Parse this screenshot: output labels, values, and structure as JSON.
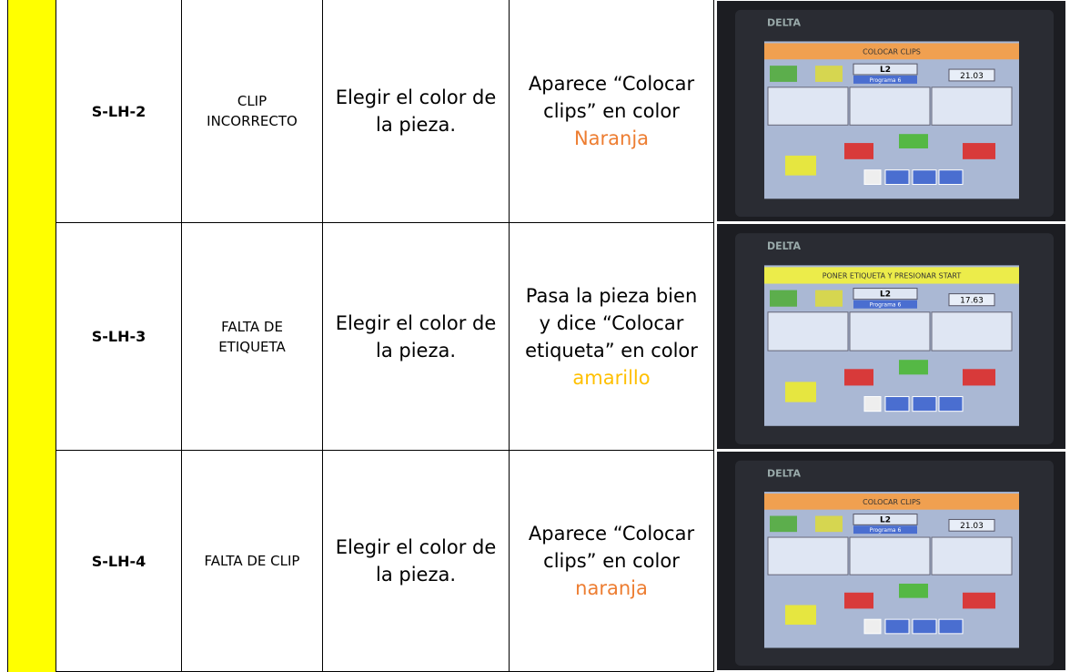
{
  "table": {
    "rows": [
      {
        "id": "S-LH-2",
        "defect": "CLIP INCORRECTO",
        "action": "Elegir el color de la pieza.",
        "result": "Aparece “Colocar clips” en color",
        "result_highlight": "Naranja",
        "screen": {
          "brand": "DELTA",
          "title": "COLOCAR CLIPS",
          "line": "L2",
          "program": "Programa 6",
          "counter": "21.03"
        }
      },
      {
        "id": "S-LH-3",
        "defect": "FALTA DE ETIQUETA",
        "action": "Elegir el color de la pieza.",
        "result": "Pasa la pieza bien y dice “Colocar etiqueta” en color",
        "result_highlight": "amarillo",
        "screen": {
          "brand": "DELTA",
          "title": "PONER ETIQUETA Y PRESIONAR START",
          "line": "L2",
          "program": "Programa 6",
          "counter": "17.63"
        }
      },
      {
        "id": "S-LH-4",
        "defect": "FALTA DE CLIP",
        "action": "Elegir el color de la pieza.",
        "result": "Aparece “Colocar clips” en color",
        "result_highlight": "naranja",
        "screen": {
          "brand": "DELTA",
          "title": "COLOCAR CLIPS",
          "line": "L2",
          "program": "Programa 6",
          "counter": "21.03"
        }
      }
    ]
  }
}
